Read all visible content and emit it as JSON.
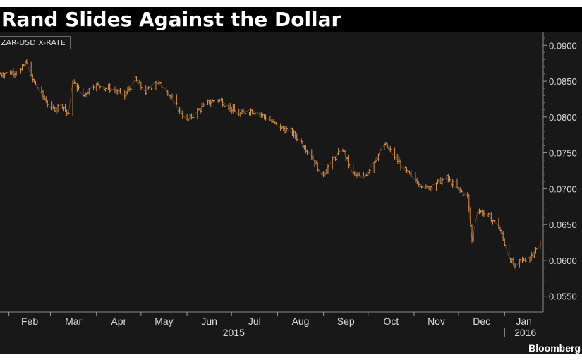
{
  "title": "Rand Slides Against the Dollar",
  "source": "Bloomberg",
  "colors": {
    "background": "#181818",
    "line": "#d9914f",
    "grid": "#3a3a3a",
    "text": "#d8d8d8"
  },
  "chart_data": {
    "type": "line",
    "title": "Rand Slides Against the Dollar",
    "series_label": "ZAR-USD X-RATE",
    "xlabel": "",
    "ylabel": "",
    "x_tick_labels": [
      "Feb",
      "Mar",
      "Apr",
      "May",
      "Jun",
      "Jul",
      "Aug",
      "Sep",
      "Oct",
      "Nov",
      "Dec",
      "Jan"
    ],
    "year_labels": [
      "2015",
      "2016"
    ],
    "y_tick_labels": [
      "0.0900",
      "0.0850",
      "0.0800",
      "0.0750",
      "0.0700",
      "0.0650",
      "0.0600",
      "0.0550"
    ],
    "ylim": [
      0.0528,
      0.0918
    ],
    "xlim": [
      "2015-01-26",
      "2016-01-27"
    ],
    "grid": true,
    "series": [
      {
        "x": [
          "2015-01-26",
          "2015-02-02",
          "2015-02-09",
          "2015-02-13",
          "2015-02-16",
          "2015-02-23",
          "2015-03-02",
          "2015-03-09",
          "2015-03-13",
          "2015-03-16",
          "2015-03-23",
          "2015-03-30",
          "2015-04-06",
          "2015-04-13",
          "2015-04-20",
          "2015-04-27",
          "2015-05-04",
          "2015-05-11",
          "2015-05-18",
          "2015-05-25",
          "2015-06-01",
          "2015-06-08",
          "2015-06-15",
          "2015-06-22",
          "2015-06-29",
          "2015-07-06",
          "2015-07-13",
          "2015-07-20",
          "2015-07-27",
          "2015-08-03",
          "2015-08-10",
          "2015-08-17",
          "2015-08-24",
          "2015-08-31",
          "2015-09-07",
          "2015-09-14",
          "2015-09-21",
          "2015-09-28",
          "2015-10-05",
          "2015-10-12",
          "2015-10-19",
          "2015-10-26",
          "2015-11-02",
          "2015-11-09",
          "2015-11-16",
          "2015-11-23",
          "2015-11-30",
          "2015-12-07",
          "2015-12-10",
          "2015-12-14",
          "2015-12-21",
          "2015-12-28",
          "2016-01-04",
          "2016-01-08",
          "2016-01-11",
          "2016-01-18",
          "2016-01-25"
        ],
        "values": [
          0.086,
          0.0862,
          0.0865,
          0.0878,
          0.0855,
          0.0832,
          0.081,
          0.0818,
          0.0802,
          0.085,
          0.083,
          0.0845,
          0.0842,
          0.0838,
          0.083,
          0.0852,
          0.0835,
          0.085,
          0.0838,
          0.0815,
          0.0795,
          0.0808,
          0.082,
          0.0825,
          0.0815,
          0.0803,
          0.081,
          0.0805,
          0.0795,
          0.0785,
          0.078,
          0.0765,
          0.0745,
          0.0718,
          0.074,
          0.0755,
          0.072,
          0.0715,
          0.0738,
          0.0762,
          0.0745,
          0.0725,
          0.0712,
          0.07,
          0.0708,
          0.0715,
          0.07,
          0.069,
          0.0628,
          0.067,
          0.0662,
          0.0648,
          0.0605,
          0.059,
          0.0598,
          0.0605,
          0.0622
        ]
      }
    ]
  }
}
